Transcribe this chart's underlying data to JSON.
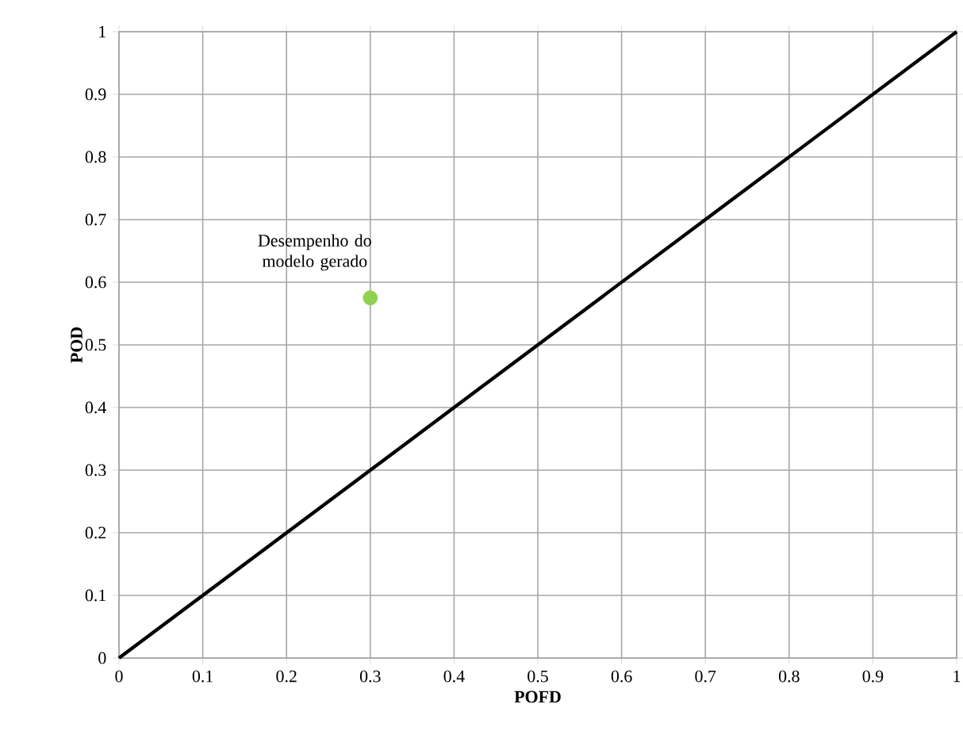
{
  "chart_data": {
    "type": "line",
    "xlabel": "POFD",
    "ylabel": "POD",
    "xlim": [
      0,
      1
    ],
    "ylim": [
      0,
      1
    ],
    "xticks": [
      0,
      0.1,
      0.2,
      0.3,
      0.4,
      0.5,
      0.6,
      0.7,
      0.8,
      0.9,
      1
    ],
    "yticks": [
      0,
      0.1,
      0.2,
      0.3,
      0.4,
      0.5,
      0.6,
      0.7,
      0.8,
      0.9,
      1
    ],
    "grid": true,
    "series": [
      {
        "color": "#000000",
        "x": [
          0,
          1
        ],
        "values": [
          0,
          1
        ]
      },
      {
        "type": "scatter",
        "color": "#92d050",
        "x": [
          0.3
        ],
        "values": [
          0.575
        ],
        "marker": "circle"
      }
    ],
    "annotations": [
      {
        "text": "Desempenho do modelo gerado",
        "x": 0.3,
        "y": 0.575
      }
    ]
  }
}
